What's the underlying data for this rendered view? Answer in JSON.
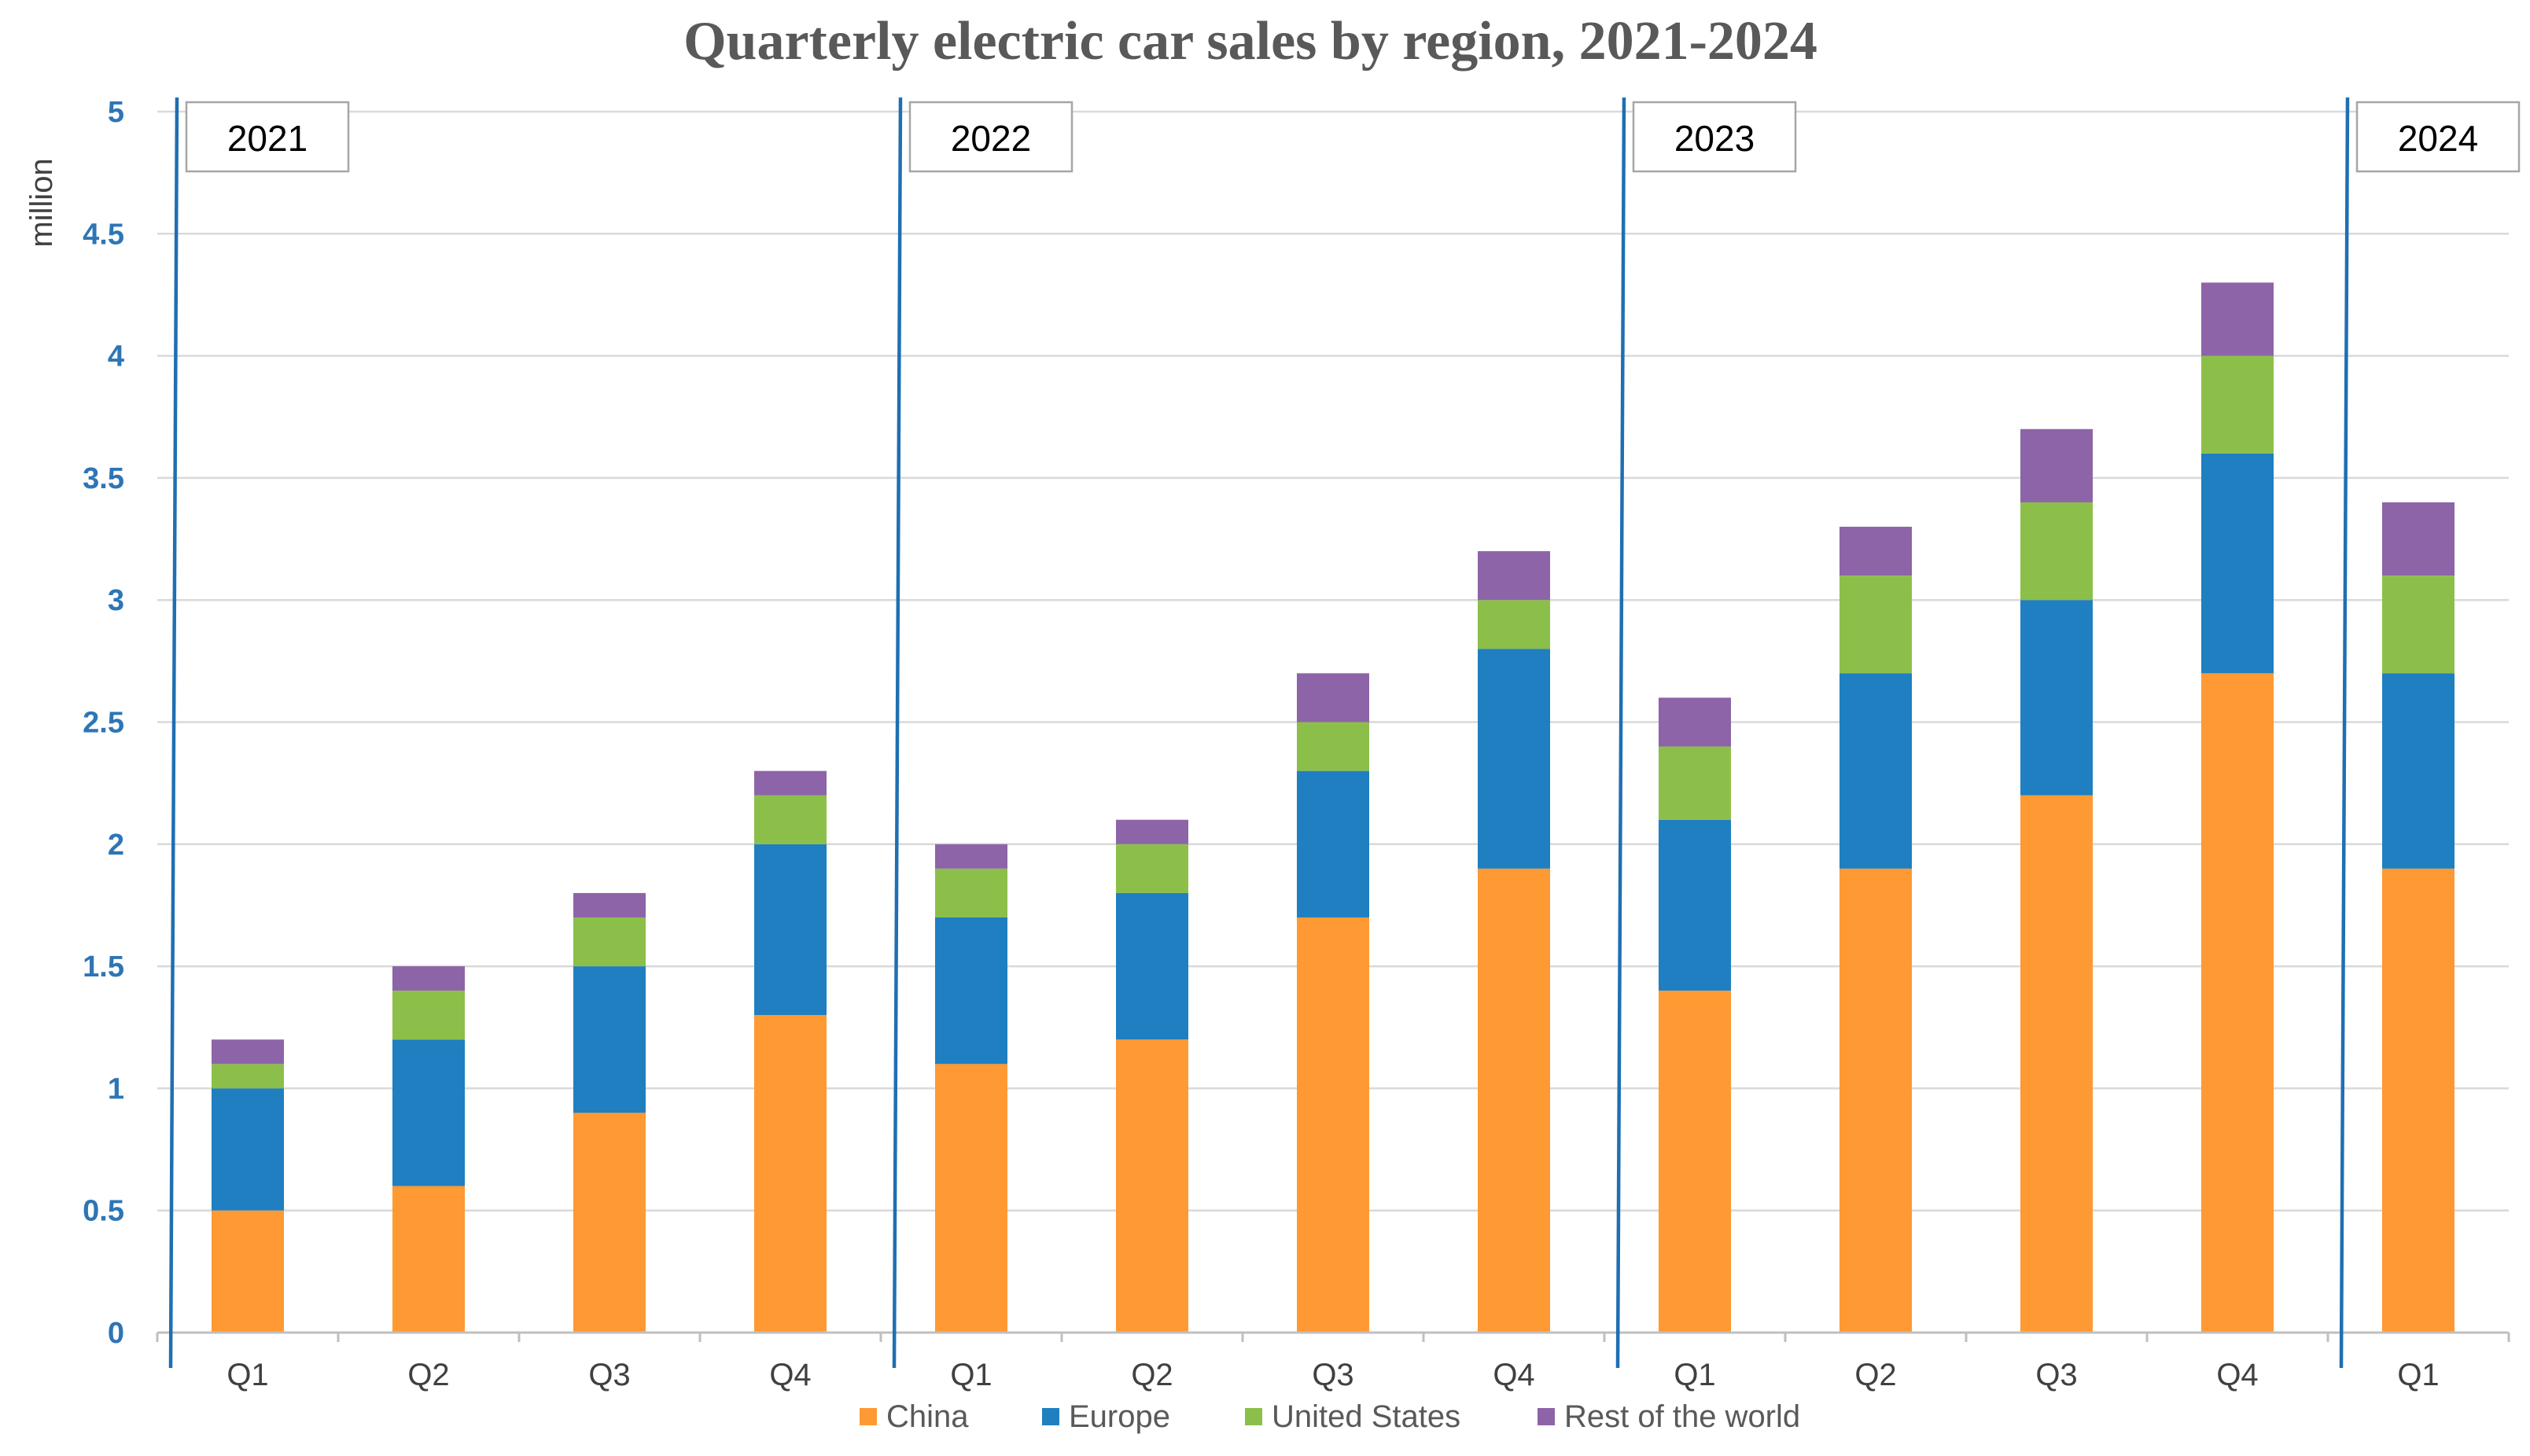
{
  "chart_data": {
    "type": "bar",
    "stacked": true,
    "title": "Quarterly electric car sales by region, 2021-2024",
    "ylabel": "million",
    "xlabel": "",
    "ylim": [
      0,
      5
    ],
    "yticks": [
      "0",
      "0.5",
      "1",
      "1.5",
      "2",
      "2.5",
      "3",
      "3.5",
      "4",
      "4.5",
      "5"
    ],
    "grid": true,
    "legend_position": "bottom",
    "categories": [
      "Q1",
      "Q2",
      "Q3",
      "Q4",
      "Q1",
      "Q2",
      "Q3",
      "Q4",
      "Q1",
      "Q2",
      "Q3",
      "Q4",
      "Q1"
    ],
    "years": [
      {
        "label": "2021",
        "start_index": 0
      },
      {
        "label": "2022",
        "start_index": 4
      },
      {
        "label": "2023",
        "start_index": 8
      },
      {
        "label": "2024",
        "start_index": 12
      }
    ],
    "series": [
      {
        "name": "China",
        "color": "#ff9933",
        "values": [
          0.5,
          0.6,
          0.9,
          1.3,
          1.1,
          1.2,
          1.7,
          1.9,
          1.4,
          1.9,
          2.2,
          2.7,
          1.9
        ]
      },
      {
        "name": "Europe",
        "color": "#1f7fc0",
        "values": [
          0.5,
          0.6,
          0.6,
          0.7,
          0.6,
          0.6,
          0.6,
          0.9,
          0.7,
          0.8,
          0.8,
          0.9,
          0.8
        ]
      },
      {
        "name": "United States",
        "color": "#8cbf4a",
        "values": [
          0.1,
          0.2,
          0.2,
          0.2,
          0.2,
          0.2,
          0.2,
          0.2,
          0.3,
          0.4,
          0.4,
          0.4,
          0.4
        ]
      },
      {
        "name": "Rest of the world",
        "color": "#8d64a8",
        "values": [
          0.1,
          0.1,
          0.1,
          0.1,
          0.1,
          0.1,
          0.2,
          0.2,
          0.2,
          0.2,
          0.3,
          0.3,
          0.3
        ]
      }
    ],
    "colors": {
      "grid": "#d9d9d9",
      "year_separator": "#1f6fb2",
      "axis": "#bfbfbf"
    }
  }
}
